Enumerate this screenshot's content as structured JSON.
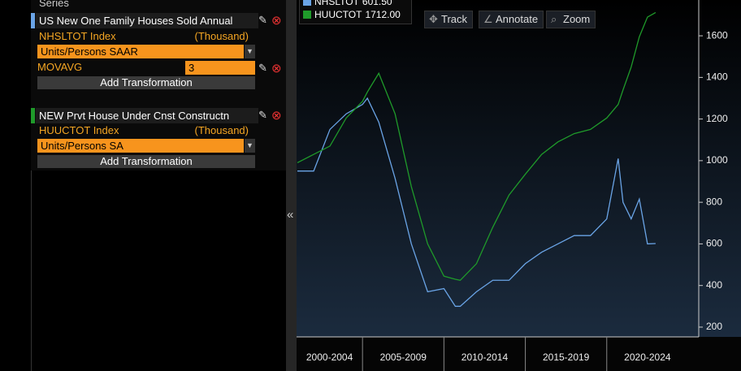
{
  "panel": {
    "header": "Series",
    "series": [
      {
        "title": "US New One Family Houses Sold Annual",
        "ticker": "NHSLTOT Index",
        "unit": "(Thousand)",
        "transform": "Units/Persons SAAR",
        "study": "MOVAVG",
        "study_value": "3",
        "add": "Add Transformation",
        "color": "#6aa4e6"
      },
      {
        "title": "NEW Prvt House Under Cnst Constructn",
        "ticker": "HUUCTOT Index",
        "unit": "(Thousand)",
        "transform": "Units/Persons SA",
        "add": "Add Transformation",
        "color": "#1f9a2a"
      }
    ]
  },
  "toolbar": [
    "Track",
    "Annotate",
    "Zoom"
  ],
  "chart_data": {
    "type": "line",
    "x": [
      2001,
      2002,
      2003,
      2004,
      2005,
      2005.3,
      2006,
      2007,
      2008,
      2009,
      2010,
      2010.7,
      2011,
      2012,
      2013,
      2014,
      2015,
      2016,
      2017,
      2018,
      2019,
      2020,
      2020.7,
      2021,
      2021.5,
      2022,
      2022.5,
      2023
    ],
    "series": [
      {
        "name": "NHSLTOT",
        "last_label": "601.50",
        "color": "#6aa4e6",
        "values": [
          950,
          950,
          1150,
          1225,
          1270,
          1300,
          1185,
          915,
          600,
          370,
          385,
          300,
          300,
          370,
          425,
          425,
          505,
          560,
          600,
          640,
          640,
          720,
          1010,
          800,
          720,
          815,
          600,
          601.5
        ]
      },
      {
        "name": "HUUCTOT",
        "last_label": "1712.00",
        "color": "#1f9a2a",
        "values": [
          990,
          1030,
          1070,
          1205,
          1285,
          1330,
          1420,
          1225,
          875,
          600,
          445,
          430,
          425,
          505,
          680,
          835,
          935,
          1030,
          1090,
          1130,
          1150,
          1205,
          1270,
          1340,
          1450,
          1595,
          1690,
          1712
        ]
      }
    ],
    "xlim": [
      2001,
      2025.65
    ],
    "xticks": [
      {
        "value": 2000,
        "label": "2000-2004"
      },
      {
        "value": 2005,
        "label": "2005-2009"
      },
      {
        "value": 2010,
        "label": "2010-2014"
      },
      {
        "value": 2015,
        "label": "2015-2019"
      },
      {
        "value": 2020,
        "label": "2020-2024"
      }
    ],
    "ylim": [
      153,
      1772
    ],
    "yticks": [
      200,
      400,
      600,
      800,
      1000,
      1200,
      1400,
      1600
    ]
  }
}
